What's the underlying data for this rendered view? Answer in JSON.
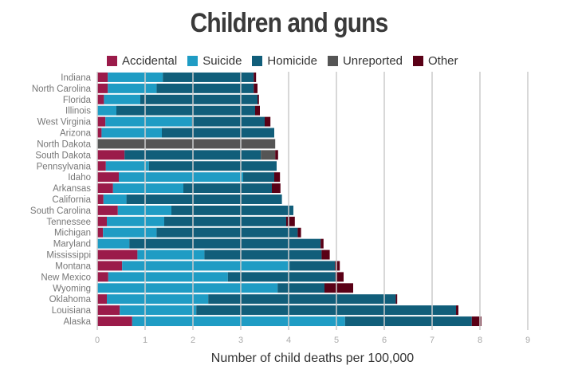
{
  "chart_data": {
    "type": "bar",
    "orientation": "horizontal",
    "stacked": true,
    "title": "Children and guns",
    "xlabel": "Number of child deaths per 100,000",
    "ylabel": "",
    "xlim": [
      0,
      9
    ],
    "xticks": [
      "0",
      "1",
      "2",
      "3",
      "4",
      "5",
      "6",
      "7",
      "8",
      "9"
    ],
    "grid": true,
    "legend_position": "top",
    "categories": [
      "Indiana",
      "North Carolina",
      "Florida",
      "Illinois",
      "West Virginia",
      "Arizona",
      "North Dakota",
      "South Dakota",
      "Pennsylvania",
      "Idaho",
      "Arkansas",
      "California",
      "South Carolina",
      "Tennessee",
      "Michigan",
      "Maryland",
      "Mississippi",
      "Montana",
      "New Mexico",
      "Wyoming",
      "Oklahoma",
      "Louisiana",
      "Alaska"
    ],
    "series": [
      {
        "name": "Accidental",
        "color": "#9b1b4a",
        "values": [
          0.22,
          0.22,
          0.14,
          0.0,
          0.17,
          0.09,
          0.0,
          0.57,
          0.18,
          0.45,
          0.33,
          0.13,
          0.43,
          0.2,
          0.12,
          0.0,
          0.84,
          0.52,
          0.23,
          0.0,
          0.2,
          0.47,
          0.73
        ]
      },
      {
        "name": "Suicide",
        "color": "#1f9cc4",
        "values": [
          1.15,
          1.02,
          0.76,
          0.4,
          1.81,
          1.26,
          0.0,
          0.0,
          0.9,
          2.6,
          1.47,
          0.48,
          1.12,
          1.2,
          1.12,
          0.67,
          1.4,
          3.5,
          2.5,
          3.77,
          2.12,
          1.6,
          4.45
        ]
      },
      {
        "name": "Homicide",
        "color": "#115e7a",
        "values": [
          1.9,
          2.03,
          2.45,
          2.9,
          1.52,
          2.35,
          0.0,
          2.85,
          2.67,
          0.65,
          1.85,
          3.25,
          2.55,
          2.55,
          2.95,
          4.0,
          2.45,
          0.95,
          2.25,
          0.98,
          3.92,
          5.43,
          2.65
        ]
      },
      {
        "name": "Unreported",
        "color": "#555555",
        "values": [
          0.0,
          0.0,
          0.0,
          0.0,
          0.0,
          0.0,
          3.72,
          0.3,
          0.0,
          0.0,
          0.0,
          0.0,
          0.0,
          0.0,
          0.0,
          0.0,
          0.0,
          0.0,
          0.0,
          0.0,
          0.0,
          0.0,
          0.0
        ]
      },
      {
        "name": "Other",
        "color": "#5a0016",
        "values": [
          0.05,
          0.08,
          0.03,
          0.1,
          0.12,
          0.0,
          0.0,
          0.06,
          0.0,
          0.12,
          0.18,
          0.0,
          0.0,
          0.18,
          0.07,
          0.06,
          0.17,
          0.1,
          0.17,
          0.6,
          0.03,
          0.05,
          0.2
        ]
      }
    ]
  }
}
